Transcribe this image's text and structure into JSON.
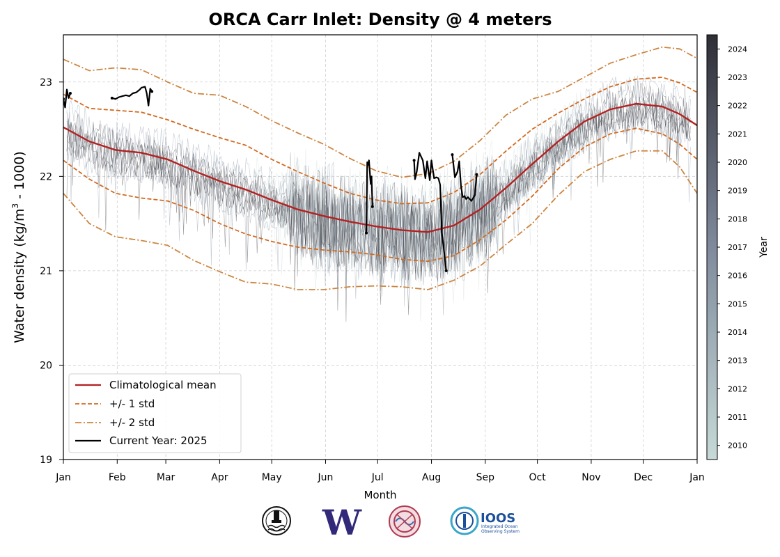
{
  "chart_data": {
    "type": "line",
    "title": "ORCA Carr Inlet: Density @ 4 meters",
    "ylabel_parts": [
      "Water density (kg/m",
      "3",
      " - 1000)"
    ],
    "xlabel": "Month",
    "ylim": [
      19,
      23.5
    ],
    "xlim": [
      0,
      365
    ],
    "yticks": [
      19,
      20,
      21,
      22,
      23
    ],
    "xticks": [
      {
        "pos": 0,
        "label": "Jan"
      },
      {
        "pos": 31,
        "label": "Feb"
      },
      {
        "pos": 59,
        "label": "Mar"
      },
      {
        "pos": 90,
        "label": "Apr"
      },
      {
        "pos": 120,
        "label": "May"
      },
      {
        "pos": 151,
        "label": "Jun"
      },
      {
        "pos": 181,
        "label": "Jul"
      },
      {
        "pos": 212,
        "label": "Aug"
      },
      {
        "pos": 243,
        "label": "Sep"
      },
      {
        "pos": 273,
        "label": "Oct"
      },
      {
        "pos": 304,
        "label": "Nov"
      },
      {
        "pos": 334,
        "label": "Dec"
      },
      {
        "pos": 365,
        "label": "Jan"
      }
    ],
    "grid": true,
    "legend_position": "lower-left",
    "colorbar": {
      "label": "Year",
      "ticks": [
        "2010",
        "2011",
        "2012",
        "2013",
        "2014",
        "2015",
        "2016",
        "2017",
        "2018",
        "2019",
        "2020",
        "2021",
        "2022",
        "2023",
        "2024"
      ],
      "colors": [
        "#c7dad7",
        "#7f8b9d",
        "#2e2e36"
      ]
    },
    "mean": {
      "name": "Climatological mean",
      "color": "#b22222",
      "x": [
        0,
        15,
        30,
        45,
        60,
        75,
        90,
        105,
        120,
        135,
        150,
        165,
        180,
        195,
        210,
        225,
        240,
        255,
        270,
        285,
        300,
        315,
        330,
        345,
        355,
        365
      ],
      "y": [
        22.52,
        22.37,
        22.28,
        22.25,
        22.18,
        22.06,
        21.95,
        21.86,
        21.75,
        21.65,
        21.58,
        21.52,
        21.47,
        21.43,
        21.41,
        21.48,
        21.65,
        21.88,
        22.13,
        22.37,
        22.58,
        22.71,
        22.77,
        22.74,
        22.66,
        22.54
      ]
    },
    "std1": {
      "name": "+/- 1 std",
      "color": "#d2691e",
      "x": [
        0,
        15,
        30,
        45,
        60,
        75,
        90,
        105,
        120,
        135,
        150,
        165,
        180,
        195,
        210,
        225,
        240,
        255,
        270,
        285,
        300,
        315,
        330,
        345,
        355,
        365
      ],
      "upper": [
        22.87,
        22.72,
        22.7,
        22.68,
        22.6,
        22.5,
        22.41,
        22.33,
        22.18,
        22.05,
        21.93,
        21.82,
        21.75,
        21.71,
        21.72,
        21.83,
        22.02,
        22.27,
        22.5,
        22.67,
        22.82,
        22.95,
        23.03,
        23.05,
        22.99,
        22.89
      ],
      "lower": [
        22.17,
        21.97,
        21.82,
        21.77,
        21.74,
        21.64,
        21.5,
        21.39,
        21.31,
        21.25,
        21.22,
        21.2,
        21.17,
        21.12,
        21.1,
        21.16,
        21.33,
        21.54,
        21.79,
        22.08,
        22.31,
        22.45,
        22.51,
        22.45,
        22.34,
        22.18
      ]
    },
    "std2": {
      "name": "+/- 2 std",
      "color": "#cd853f",
      "x": [
        0,
        15,
        30,
        45,
        60,
        75,
        90,
        105,
        120,
        135,
        150,
        165,
        180,
        195,
        210,
        225,
        240,
        255,
        270,
        285,
        300,
        315,
        330,
        345,
        355,
        365
      ],
      "upper": [
        23.24,
        23.12,
        23.15,
        23.13,
        23.0,
        22.88,
        22.86,
        22.74,
        22.59,
        22.46,
        22.34,
        22.19,
        22.06,
        21.99,
        22.03,
        22.16,
        22.38,
        22.65,
        22.82,
        22.9,
        23.05,
        23.2,
        23.29,
        23.37,
        23.35,
        23.25
      ],
      "lower": [
        21.82,
        21.5,
        21.36,
        21.32,
        21.27,
        21.11,
        20.99,
        20.88,
        20.86,
        20.8,
        20.8,
        20.83,
        20.84,
        20.83,
        20.8,
        20.9,
        21.05,
        21.28,
        21.5,
        21.8,
        22.05,
        22.18,
        22.27,
        22.27,
        22.1,
        21.82
      ]
    },
    "current_year": {
      "name": "Current Year: 2025",
      "color": "#000000",
      "segments": [
        {
          "x": [
            0,
            1,
            2,
            3,
            4
          ],
          "y": [
            22.82,
            22.73,
            22.92,
            22.83,
            22.88
          ]
        },
        {
          "x": [
            28,
            30,
            32,
            34,
            36,
            38,
            40,
            42,
            44,
            45,
            47,
            48,
            49,
            50,
            51
          ],
          "y": [
            22.83,
            22.82,
            22.84,
            22.85,
            22.86,
            22.85,
            22.88,
            22.89,
            22.92,
            22.94,
            22.95,
            22.88,
            22.75,
            22.93,
            22.9
          ]
        },
        {
          "x": [
            174.5,
            175,
            175.5,
            176,
            176.5,
            177,
            177.5,
            178
          ],
          "y": [
            21.4,
            22.15,
            22.12,
            22.17,
            22.05,
            21.92,
            22.0,
            21.68
          ]
        },
        {
          "x": [
            202,
            202.5,
            203.5,
            205,
            207,
            208.5,
            209.5,
            211,
            212,
            213.5,
            215,
            216,
            217,
            218,
            219,
            220.5
          ],
          "y": [
            22.17,
            21.97,
            22.05,
            22.25,
            22.17,
            21.98,
            22.16,
            21.96,
            22.17,
            21.98,
            21.99,
            21.98,
            21.91,
            21.4,
            21.25,
            21.0
          ]
        },
        {
          "x": [
            224,
            225.5,
            227,
            228,
            229,
            230,
            231,
            232,
            233,
            235,
            237,
            238
          ],
          "y": [
            22.23,
            21.99,
            22.05,
            22.16,
            21.9,
            21.78,
            21.79,
            21.76,
            21.78,
            21.74,
            21.8,
            22.02
          ]
        }
      ]
    },
    "historical_note": "faint colored lines, one per year 2010-2024"
  },
  "logos": [
    {
      "name": "orca-buoy-logo"
    },
    {
      "name": "uw-logo",
      "text": "W"
    },
    {
      "name": "nanoos-logo"
    },
    {
      "name": "ioos-logo",
      "text": "IOOS",
      "subtext": "Integrated Ocean Observing System"
    }
  ]
}
